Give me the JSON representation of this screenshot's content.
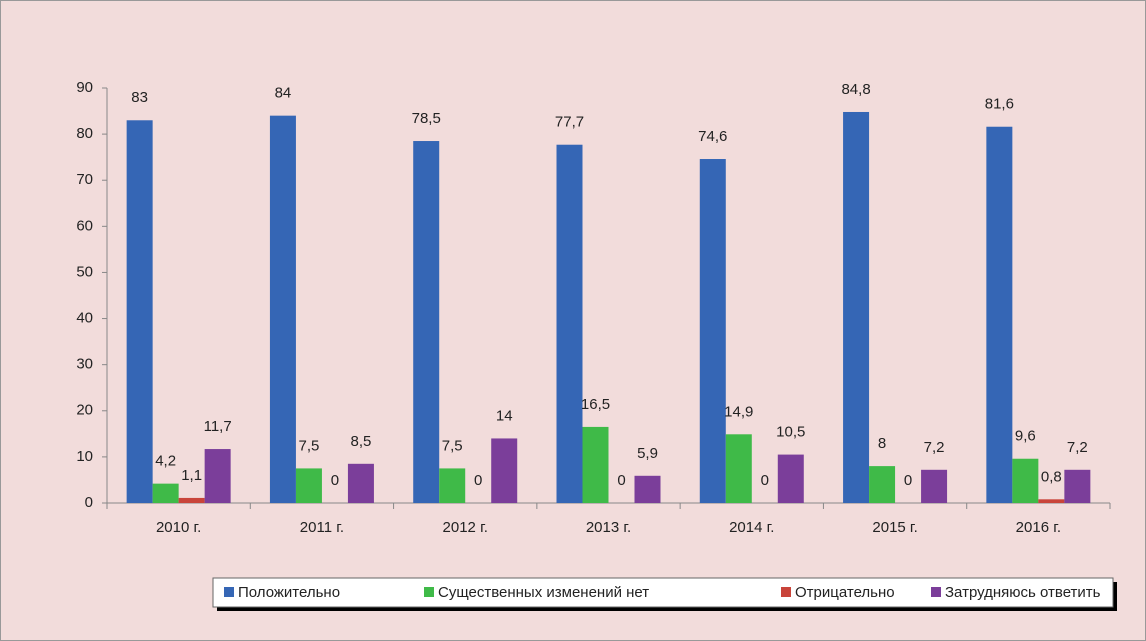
{
  "chart_data": {
    "type": "bar",
    "categories": [
      "2010 г.",
      "2011 г.",
      "2012 г.",
      "2013 г.",
      "2014 г.",
      "2015 г.",
      "2016 г."
    ],
    "series": [
      {
        "name": "Положительно",
        "color": "#3566b5",
        "values": [
          83,
          84,
          78.5,
          77.7,
          74.6,
          84.8,
          81.6
        ],
        "value_labels": [
          "83",
          "84",
          "78,5",
          "77,7",
          "74,6",
          "84,8",
          "81,6"
        ]
      },
      {
        "name": "Существенных изменений нет",
        "color": "#3fba48",
        "values": [
          4.2,
          7.5,
          7.5,
          16.5,
          14.9,
          8,
          9.6
        ],
        "value_labels": [
          "4,2",
          "7,5",
          "7,5",
          "16,5",
          "14,9",
          "8",
          "9,6"
        ]
      },
      {
        "name": "Отрицательно",
        "color": "#c9443a",
        "values": [
          1.1,
          0,
          0,
          0,
          0,
          0,
          0.8
        ],
        "value_labels": [
          "1,1",
          "0",
          "0",
          "0",
          "0",
          "0",
          "0,8"
        ]
      },
      {
        "name": "Затрудняюсь ответить",
        "color": "#7b3e9a",
        "values": [
          11.7,
          8.5,
          14,
          5.9,
          10.5,
          7.2,
          7.2
        ],
        "value_labels": [
          "11,7",
          "8,5",
          "14",
          "5,9",
          "10,5",
          "7,2",
          "7,2"
        ]
      }
    ],
    "ylim": [
      0,
      90
    ],
    "yticks": [
      0,
      10,
      20,
      30,
      40,
      50,
      60,
      70,
      80,
      90
    ],
    "grid": false,
    "legend": "bottom"
  }
}
